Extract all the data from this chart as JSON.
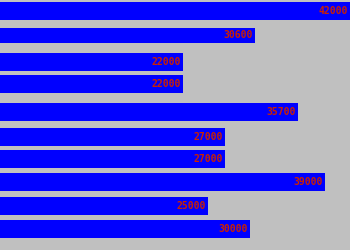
{
  "values": [
    42000,
    30600,
    22000,
    22000,
    35700,
    27000,
    27000,
    39000,
    25000,
    30000
  ],
  "bar_color": "#0000FF",
  "label_color": "#CC2200",
  "background_color": "#C0C0C0",
  "max_value": 42000,
  "label_fontsize": 7,
  "figwidth": 3.5,
  "figheight": 2.5,
  "dpi": 100
}
